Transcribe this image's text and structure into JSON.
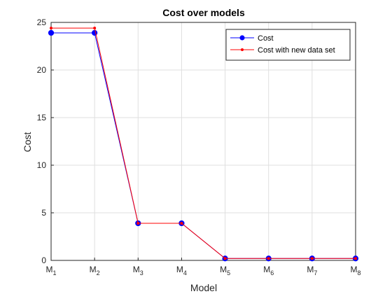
{
  "chart_data": {
    "type": "line",
    "title": "Cost over models",
    "xlabel": "Model",
    "ylabel": "Cost",
    "categories": [
      {
        "base": "M",
        "sub": "1"
      },
      {
        "base": "M",
        "sub": "2"
      },
      {
        "base": "M",
        "sub": "3"
      },
      {
        "base": "M",
        "sub": "4"
      },
      {
        "base": "M",
        "sub": "5"
      },
      {
        "base": "M",
        "sub": "6"
      },
      {
        "base": "M",
        "sub": "7"
      },
      {
        "base": "M",
        "sub": "8"
      }
    ],
    "ylim": [
      0,
      25
    ],
    "yticks": [
      "0",
      "5",
      "10",
      "15",
      "20",
      "25"
    ],
    "grid": true,
    "legend_position": "top-right",
    "series": [
      {
        "name": "Cost",
        "color": "#0000ff",
        "marker": "circle",
        "values": [
          23.9,
          23.9,
          3.9,
          3.9,
          0.2,
          0.2,
          0.2,
          0.2
        ]
      },
      {
        "name": "Cost with new data set",
        "color": "#ff0000",
        "marker": "dot",
        "values": [
          24.4,
          24.4,
          3.9,
          3.9,
          0.2,
          0.2,
          0.2,
          0.2
        ]
      }
    ]
  }
}
